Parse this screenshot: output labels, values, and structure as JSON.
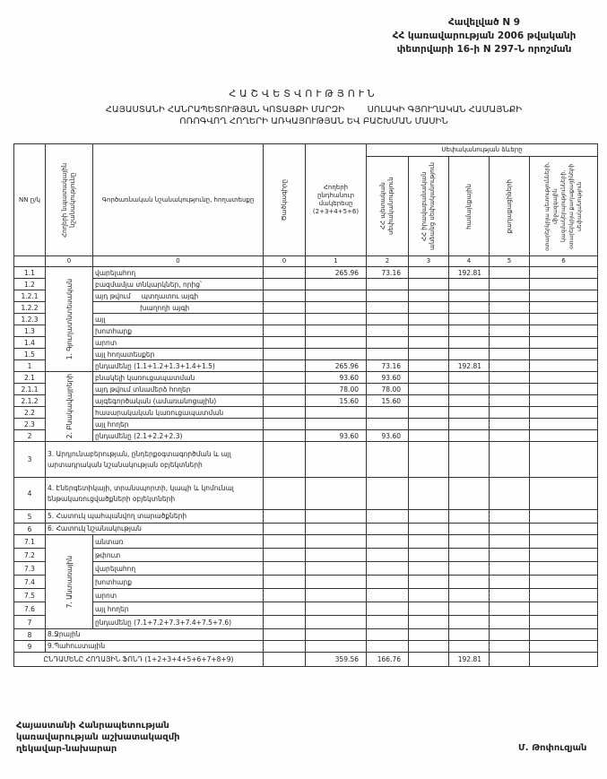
{
  "annex": {
    "line1": "Հավելված N 9",
    "line2": "ՀՀ կառավարության 2006 թվականի",
    "line3": "փետրվարի 16-ի N 297-Ն որոշման"
  },
  "title": "ՀԱՇՎԵՏՎՈՒԹՅՈՒՆ",
  "subtitle1": "ՀԱՅԱՍՏԱՆԻ ՀԱՆՐԱՊԵՏՈՒԹՅԱՆ ԿՈՏԱՅՔԻ ՄԱՐԶԻ        ՍՈԼԱԿԻ ԳՅՈՒՂԱԿԱՆ ՀԱՄԱՅՆՔԻ",
  "subtitle2": "ՈՌՈԳՎՈՂ ՀՈՂԵՐԻ ԱՌԿԱՅՈՒԹՅԱՆ ԵՎ ԲԱՇԽՄԱՆ ՄԱՍԻՆ",
  "header": {
    "nn": "NN ը/կ",
    "purpose": "Հողերի նպատակային նշանակությունը",
    "function": "Գործառնական նշանակությունը, հողատեսքը",
    "code": "Ծածկագիրը",
    "total": "Հողերի ընդհանուր մակերեսը (2+3+4+5+6)",
    "ownership": "Սեփականության ձևերը",
    "c2": "ՀՀ պետական սեփականություն",
    "c3": "ՀՀ իրավաբանական անձանց սեփականություն",
    "c4": "համայնքային",
    "c5": "քաղաքացիների",
    "c6": "օտարերկրյա պետությունների, միջազգային կազմակերպությունների, օտարերկրյա քաղաքացիների սեփականություն",
    "n": [
      "0",
      "0",
      "0",
      "1",
      "2",
      "3",
      "4",
      "5",
      "6"
    ]
  },
  "groups": {
    "g1": "1. Գյուղատնտեսական",
    "g2": "2. Բնակավայրերի",
    "g7": "7. Անտառային"
  },
  "rows": [
    {
      "nn": "1.1",
      "label": "վարելահող",
      "total": "265.96",
      "c2": "73.16",
      "c4": "192.81"
    },
    {
      "nn": "1.2",
      "label": "բազմամյա տնկարկներ, որից՝"
    },
    {
      "nn": "1.2.1",
      "label": "այդ թվում     պտղատու այգի"
    },
    {
      "nn": "1.2.2",
      "label": "                     խաղողի այգի"
    },
    {
      "nn": "1.2.3",
      "label": "այլ"
    },
    {
      "nn": "1.3",
      "label": "խոտհարք"
    },
    {
      "nn": "1.4",
      "label": "արոտ"
    },
    {
      "nn": "1.5",
      "label": "այլ հողատեսքեր"
    },
    {
      "nn": "1",
      "label": "ընդամենը (1.1+1.2+1.3+1.4+1.5)",
      "total": "265.96",
      "c2": "73.16",
      "c4": "192.81"
    },
    {
      "nn": "2.1",
      "label": "բնակելի կառուցապատման",
      "total": "93.60",
      "c2": "93.60"
    },
    {
      "nn": "2.1.1",
      "label": "այդ թվում տնամերձ հողեր",
      "total": "78.00",
      "c2": "78.00"
    },
    {
      "nn": "2.1.2",
      "label": "այգեգործական (ամառանոցային)",
      "total": "15.60",
      "c2": "15.60"
    },
    {
      "nn": "2.2",
      "label": "հասարակական կառուցապատման"
    },
    {
      "nn": "2.3",
      "label": "այլ հողեր"
    },
    {
      "nn": "2",
      "label": "ընդամենը (2.1+2.2+2.3)",
      "total": "93.60",
      "c2": "93.60"
    },
    {
      "nn": "3",
      "label": "3. Արդյունաբերության, ընդերքօգտագործման և այլ արտադրական նշանակության օբյեկտների",
      "wide": true
    },
    {
      "nn": "4",
      "label": "4. Էներգետիկայի, տրանսպորտի, կապի և կոմունալ ենթակառուցվածքների օբյեկտների",
      "wide": true
    },
    {
      "nn": "5",
      "label": "5. Հատուկ պահպանվող տարածքների",
      "wide": true
    },
    {
      "nn": "6",
      "label": "6. Հատուկ նշանակության",
      "wide": true
    },
    {
      "nn": "7.1",
      "label": "անտառ"
    },
    {
      "nn": "7.2",
      "label": "թփուտ"
    },
    {
      "nn": "7.3",
      "label": "վարելահող"
    },
    {
      "nn": "7.4",
      "label": "խոտհարք"
    },
    {
      "nn": "7.5",
      "label": "արոտ"
    },
    {
      "nn": "7.6",
      "label": "այլ հողեր"
    },
    {
      "nn": "7",
      "label": "ընդամենը (7.1+7.2+7.3+7.4+7.5+7.6)"
    },
    {
      "nn": "8",
      "label": "8.Ջրային",
      "wide": true
    },
    {
      "nn": "9",
      "label": "9.Պահուստային",
      "wide": true
    }
  ],
  "grand_total": {
    "label": "ԸՆԴԱՄԵՆԸ ՀՈՂԱՅԻՆ ՖՈՆԴ (1+2+3+4+5+6+7+8+9)",
    "total": "359.56",
    "c2": "166.76",
    "c4": "192.81"
  },
  "footer": {
    "line1": "Հայաստանի Հանրապետության",
    "line2": "կառավարության աշխատակազմի",
    "line3": "ղեկավար-նախարար",
    "signature": "Մ. Թոփուզյան"
  }
}
